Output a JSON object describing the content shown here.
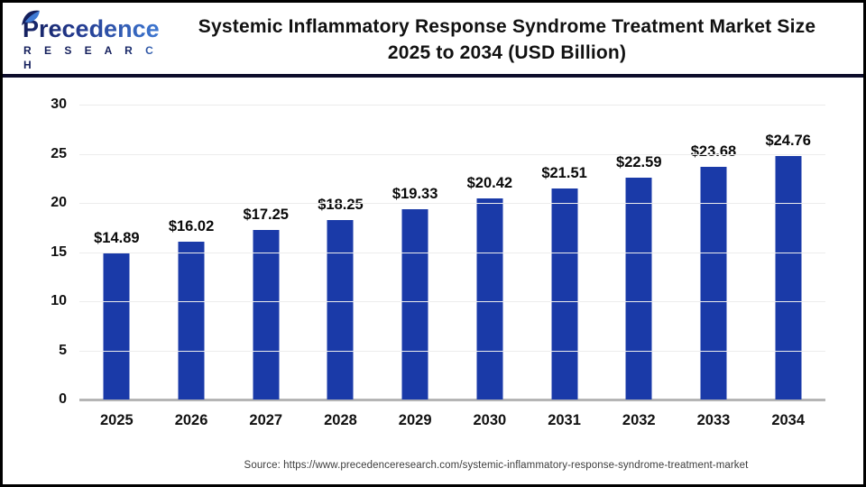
{
  "header": {
    "logo": {
      "line1": "Precedence",
      "line2": "R E S E A R C H"
    },
    "title_line1": "Systemic Inflammatory Response Syndrome Treatment Market Size",
    "title_line2": "2025 to 2034 (USD Billion)"
  },
  "chart_data": {
    "type": "bar",
    "title": "Systemic Inflammatory Response Syndrome Treatment Market Size 2025 to 2034 (USD Billion)",
    "categories": [
      "2025",
      "2026",
      "2027",
      "2028",
      "2029",
      "2030",
      "2031",
      "2032",
      "2033",
      "2034"
    ],
    "values": [
      14.89,
      16.02,
      17.25,
      18.25,
      19.33,
      20.42,
      21.51,
      22.59,
      23.68,
      24.76
    ],
    "value_label_prefix": "$",
    "xlabel": "",
    "ylabel": "",
    "ylim": [
      0,
      30
    ],
    "yticks": [
      0,
      5,
      10,
      15,
      20,
      25,
      30
    ],
    "grid": true,
    "legend": "none",
    "bar_color": "#1a3aa8"
  },
  "footer": {
    "source": "Source: https://www.precedenceresearch.com/systemic-inflammatory-response-syndrome-treatment-market"
  },
  "colors": {
    "bar": "#1a3aa8",
    "divider": "#0d0d2b",
    "gridline": "#ececec",
    "baseline": "#b5b5b5",
    "logo_navy": "#141f5c",
    "logo_blue": "#3f7ad4"
  }
}
